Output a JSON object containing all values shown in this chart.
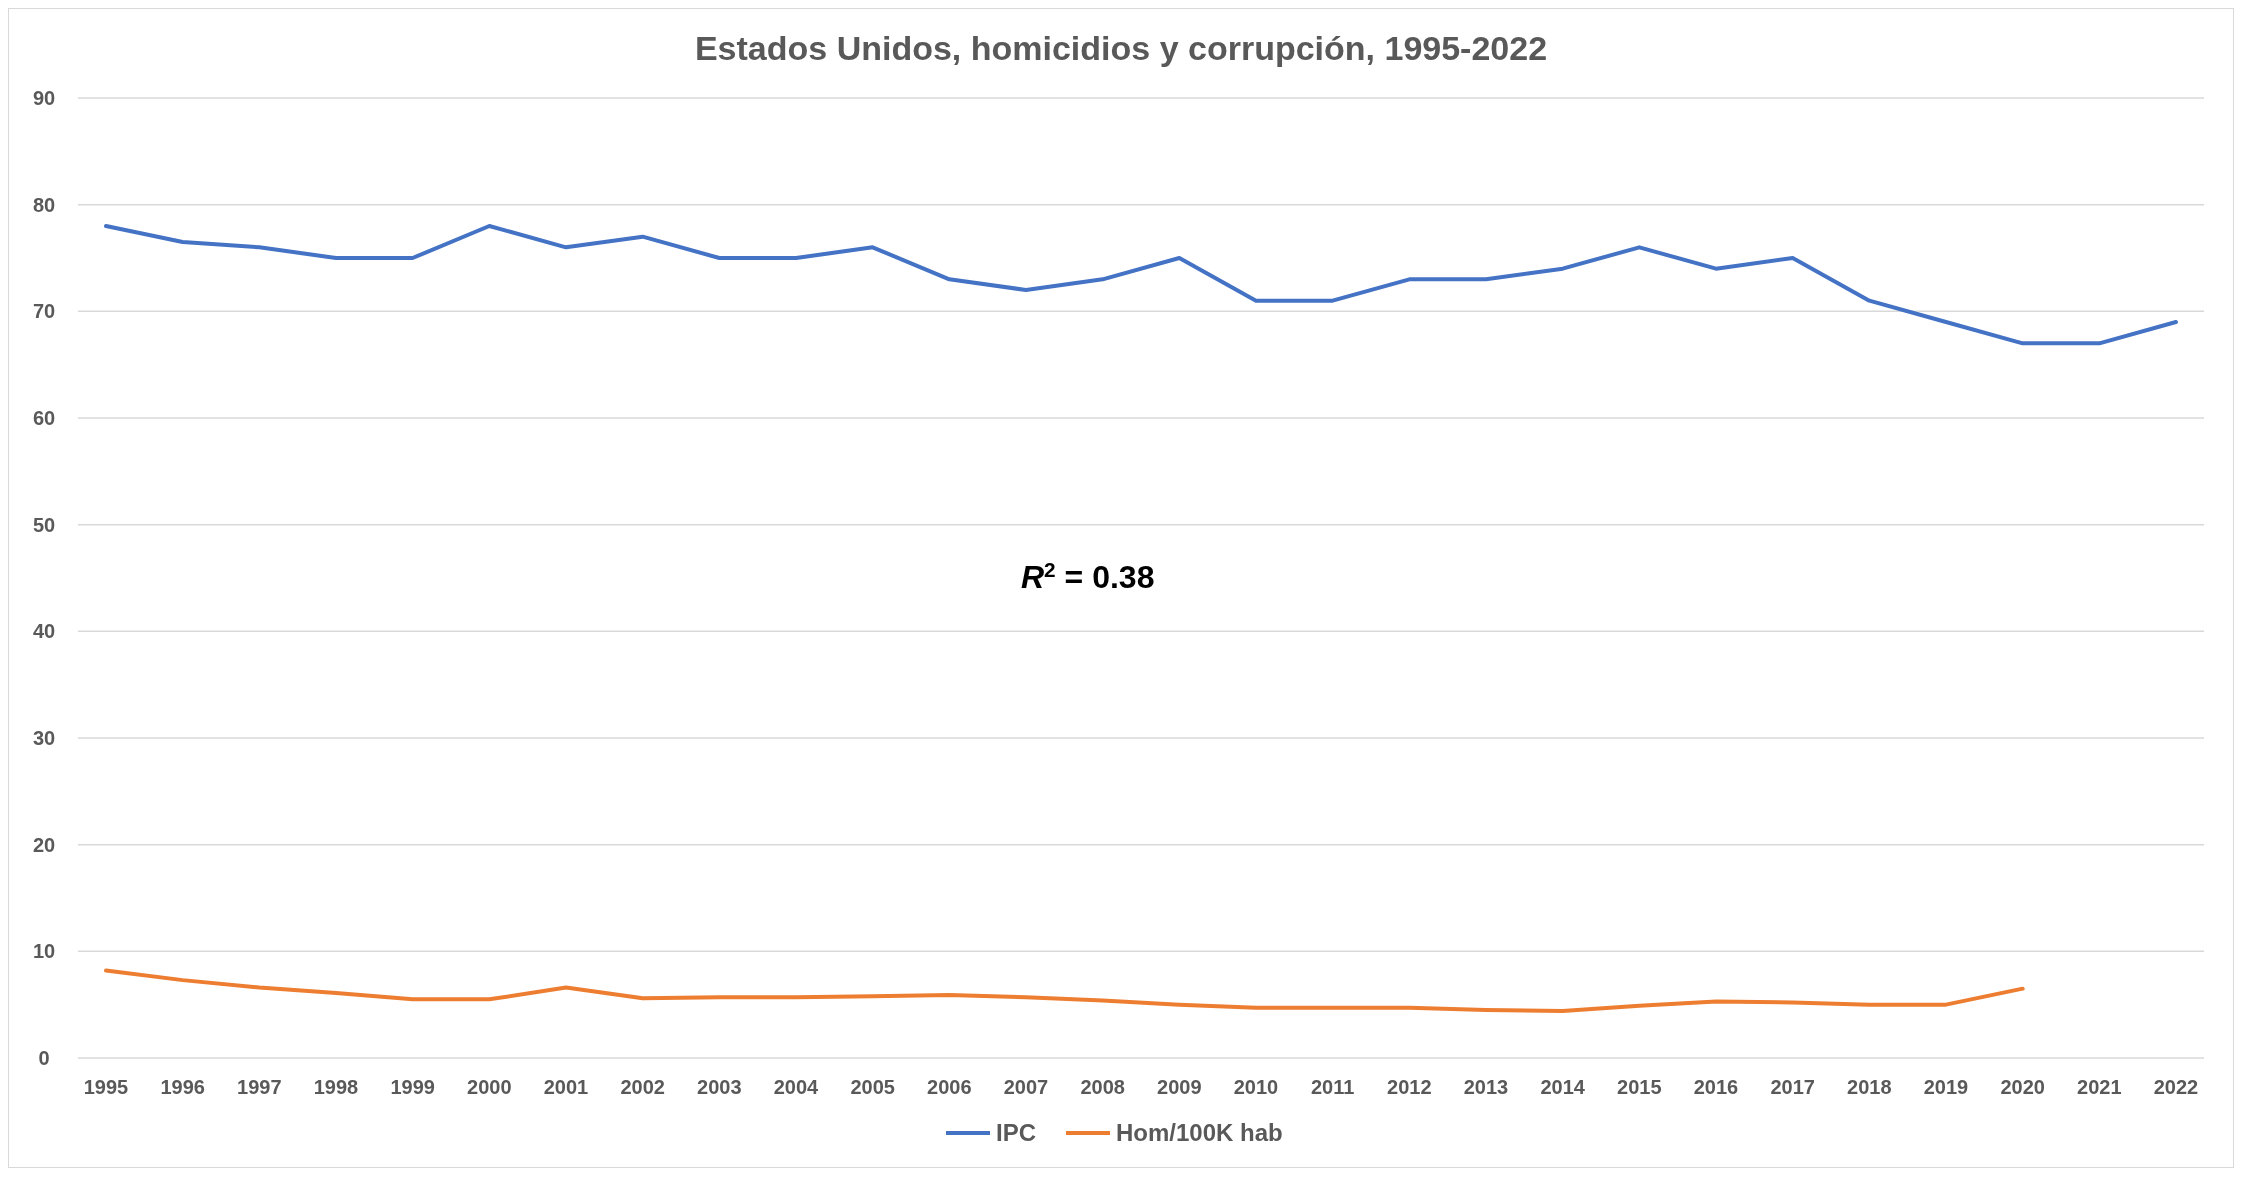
{
  "chart_data": {
    "type": "line",
    "title": "Estados Unidos, homicidios y corrupción, 1995-2022",
    "categories": [
      "1995",
      "1996",
      "1997",
      "1998",
      "1999",
      "2000",
      "2001",
      "2002",
      "2003",
      "2004",
      "2005",
      "2006",
      "2007",
      "2008",
      "2009",
      "2010",
      "2011",
      "2012",
      "2013",
      "2014",
      "2015",
      "2016",
      "2017",
      "2018",
      "2019",
      "2020",
      "2021",
      "2022"
    ],
    "series": [
      {
        "name": "IPC",
        "color": "#4472c4",
        "values": [
          78,
          76.5,
          76,
          75,
          75,
          78,
          76,
          77,
          75,
          75,
          76,
          73,
          72,
          73,
          75,
          71,
          71,
          73,
          73,
          74,
          76,
          74,
          75,
          71,
          69,
          67,
          67,
          69
        ]
      },
      {
        "name": "Hom/100K hab",
        "color": "#ed7d31",
        "values": [
          8.2,
          7.3,
          6.6,
          6.1,
          5.5,
          5.5,
          6.6,
          5.6,
          5.7,
          5.7,
          5.8,
          5.9,
          5.7,
          5.4,
          5.0,
          4.7,
          4.7,
          4.7,
          4.5,
          4.4,
          4.9,
          5.3,
          5.2,
          5.0,
          5.0,
          6.5,
          null,
          null
        ]
      }
    ],
    "ylim": [
      0,
      90
    ],
    "yticks": [
      0,
      10,
      20,
      30,
      40,
      50,
      60,
      70,
      80,
      90
    ],
    "grid": "y",
    "legend": "bottom",
    "marker": "none",
    "line_style": "solid",
    "annotations": [
      "R$^{2}$ = 0.38"
    ]
  }
}
